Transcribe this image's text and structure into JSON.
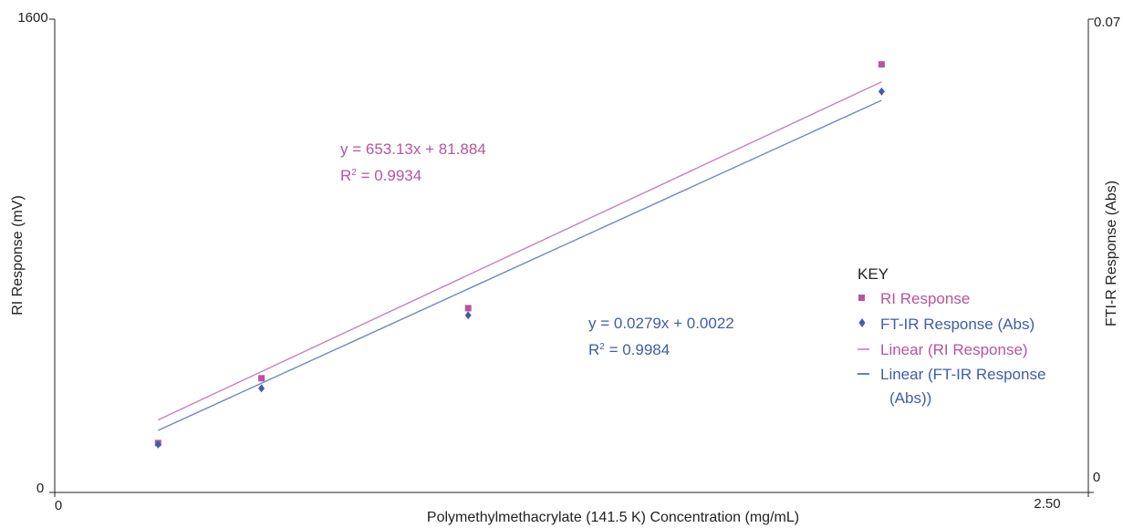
{
  "chart_data": {
    "type": "scatter",
    "xlabel": "Polymethylmethacrylate (141.5 K) Concentration (mg/mL)",
    "ylabel": "RI Response (mV)",
    "y2label": "FTI-R Response (Abs)",
    "xlim": [
      0,
      2.5
    ],
    "ylim": [
      0,
      1600
    ],
    "y2lim": [
      0,
      0.07
    ],
    "x_ticks": [
      "0",
      "2.50"
    ],
    "y_ticks": [
      "0",
      "1600"
    ],
    "y2_ticks": [
      "0",
      "0.07"
    ],
    "grid": false,
    "legend_position": "right",
    "series": [
      {
        "name": "RI Response",
        "axis": "left",
        "marker": "square",
        "color": "#b8549e",
        "x": [
          0.25,
          0.5,
          1.0,
          2.0
        ],
        "y": [
          167,
          386,
          623,
          1447
        ]
      },
      {
        "name": "FT-IR Response (Abs)",
        "axis": "right",
        "marker": "diamond",
        "color": "#3f5ea8",
        "x": [
          0.25,
          0.5,
          1.0,
          2.0
        ],
        "y": [
          0.0071,
          0.0154,
          0.0262,
          0.0593
        ]
      }
    ],
    "trendlines": [
      {
        "name": "Linear (RI Response)",
        "axis": "left",
        "color": "#c97fb8",
        "slope": 653.13,
        "intercept": 81.884,
        "x_range": [
          0.25,
          2.0
        ],
        "equation": "y = 653.13x + 81.884",
        "r2_value": "0.9934"
      },
      {
        "name": "Linear (FT-IR Response (Abs))",
        "axis": "right",
        "color": "#7088c4",
        "slope": 0.0279,
        "intercept": 0.0022,
        "x_range": [
          0.25,
          2.0
        ],
        "equation": "y = 0.0279x + 0.0022",
        "r2_value": "0.9984"
      }
    ],
    "legend": {
      "title": "KEY",
      "items": [
        {
          "label": "RI Response",
          "symbol": "square",
          "color": "#b8549e"
        },
        {
          "label": "FT-IR Response (Abs)",
          "symbol": "diamond",
          "color": "#3f5ea8"
        },
        {
          "label": "Linear (RI Response)",
          "symbol": "line",
          "color": "#c97fb8"
        },
        {
          "label": "Linear (FT-IR Response (Abs))",
          "symbol": "line",
          "color": "#3f5ea8"
        }
      ]
    },
    "axis_color": "#222222",
    "text_color": "#222222"
  }
}
